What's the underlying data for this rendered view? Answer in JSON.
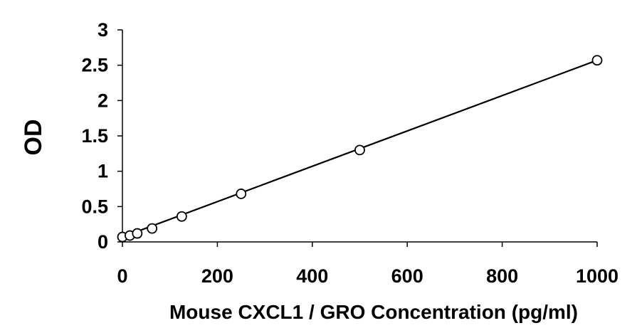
{
  "chart_data": {
    "type": "scatter",
    "xlabel": "Mouse CXCL1 / GRO Concentration (pg/ml)",
    "ylabel": "OD",
    "xlim": [
      0,
      1000
    ],
    "ylim": [
      0,
      3
    ],
    "x_ticks": [
      "0",
      "200",
      "400",
      "600",
      "800",
      "1000"
    ],
    "y_ticks": [
      "0",
      "0.5",
      "1",
      "1.5",
      "2",
      "2.5",
      "3"
    ],
    "grid": false,
    "legend": "none",
    "series": [
      {
        "x": [
          0,
          15.6,
          31.25,
          62.5,
          125,
          250,
          500,
          1000
        ],
        "y": [
          0.07,
          0.09,
          0.12,
          0.19,
          0.36,
          0.68,
          1.3,
          2.57
        ]
      }
    ],
    "trendline": {
      "type": "linear",
      "x": [
        0,
        1000
      ],
      "y": [
        0.07,
        2.57
      ]
    },
    "colors": {
      "axis": "#000000",
      "marker_fill": "#ffffff",
      "marker_stroke": "#000000"
    }
  }
}
